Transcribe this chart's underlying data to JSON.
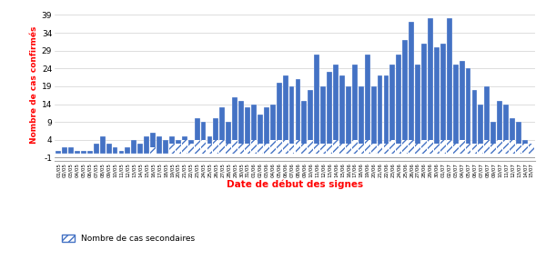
{
  "title": "",
  "ylabel": "Nombre de cas confirmés",
  "xlabel": "Date de début des signes",
  "legend_label": "Nombre de cas secondaires",
  "bar_color": "#4472C4",
  "hatch_color": "#4472C4",
  "background_color": "#ffffff",
  "ylabel_color": "#FF0000",
  "xlabel_color": "#FF0000",
  "yticks": [
    -1,
    4,
    9,
    14,
    19,
    24,
    29,
    34,
    39
  ],
  "ylim": [
    -2,
    41
  ],
  "total_values": [
    1,
    2,
    2,
    1,
    1,
    1,
    3,
    5,
    3,
    2,
    1,
    2,
    4,
    3,
    5,
    6,
    5,
    4,
    5,
    4,
    5,
    4,
    10,
    9,
    5,
    10,
    13,
    9,
    16,
    15,
    13,
    14,
    11,
    13,
    14,
    20,
    22,
    19,
    21,
    15,
    18,
    28,
    19,
    23,
    25,
    22,
    19,
    25,
    19,
    28,
    19,
    22,
    22,
    25,
    28,
    32,
    37,
    25,
    31,
    38,
    30,
    31,
    38,
    25,
    26,
    24,
    18,
    14,
    19,
    9,
    15,
    14,
    10,
    9,
    4,
    3
  ],
  "secondary_values": [
    0,
    0,
    0,
    0,
    0,
    0,
    0,
    0,
    0,
    0,
    0,
    0,
    0,
    0,
    0,
    2,
    0,
    0,
    3,
    3,
    4,
    3,
    4,
    4,
    3,
    4,
    4,
    3,
    4,
    3,
    3,
    4,
    3,
    3,
    4,
    4,
    4,
    3,
    4,
    3,
    4,
    3,
    3,
    3,
    4,
    3,
    3,
    4,
    3,
    4,
    3,
    3,
    3,
    4,
    3,
    4,
    4,
    3,
    4,
    4,
    3,
    4,
    4,
    3,
    4,
    3,
    3,
    3,
    4,
    3,
    4,
    4,
    4,
    3,
    3,
    3
  ],
  "x_labels": [
    "01/05",
    "02/05",
    "03/05",
    "04/05",
    "05/05",
    "06/05",
    "07/05",
    "08/05",
    "09/05",
    "10/05",
    "11/05",
    "12/05",
    "13/05",
    "14/05",
    "15/05",
    "16/05",
    "17/05",
    "18/05",
    "19/05",
    "20/05",
    "21/05",
    "22/05",
    "23/05",
    "24/05",
    "25/05",
    "26/05",
    "27/05",
    "28/05",
    "29/05",
    "30/05",
    "31/05",
    "01/06",
    "02/06",
    "03/06",
    "04/06",
    "05/06",
    "06/06",
    "07/06",
    "08/06",
    "09/06",
    "10/06",
    "11/06",
    "12/06",
    "13/06",
    "14/06",
    "15/06",
    "16/06",
    "17/06",
    "18/06",
    "19/06",
    "20/06",
    "21/06",
    "22/06",
    "23/06",
    "24/06",
    "25/06",
    "26/06",
    "27/06",
    "28/06",
    "29/06",
    "30/06",
    "01/07",
    "02/07",
    "03/07",
    "04/07",
    "05/07",
    "06/07",
    "07/07",
    "08/07",
    "09/07",
    "10/07",
    "11/07",
    "12/07",
    "13/07",
    "14/07",
    "15/07"
  ]
}
